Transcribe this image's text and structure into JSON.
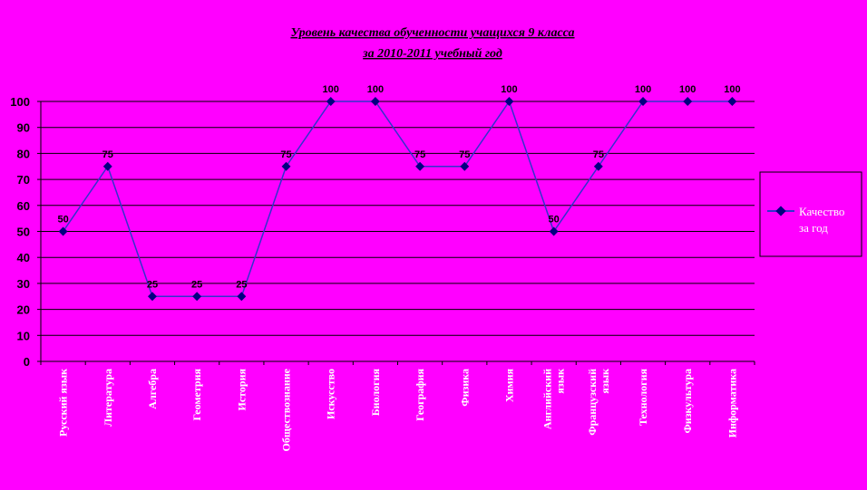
{
  "chart_data": {
    "type": "line",
    "title": "Уровень качества обученности учащихся 9 класса",
    "subtitle": "за 2010-2011 учебный год",
    "categories": [
      "Русский язык",
      "Литература",
      "Алгебра",
      "Геометрия",
      "История",
      "Обществознание",
      "Искусство",
      "Биология",
      "География",
      "Физика",
      "Химия",
      "Английский язык",
      "Французский язык",
      "Технология",
      "Физкультура",
      "Информатика"
    ],
    "series": [
      {
        "name": "Качество за год",
        "values": [
          50,
          75,
          25,
          25,
          25,
          75,
          100,
          100,
          75,
          75,
          100,
          50,
          75,
          100,
          100,
          100
        ]
      }
    ],
    "ylim": [
      0,
      100
    ],
    "yticks": [
      0,
      10,
      20,
      30,
      40,
      50,
      60,
      70,
      80,
      90,
      100
    ],
    "grid": true,
    "legend": "right",
    "colors": {
      "background": "#ff00ff",
      "plot_background": "#ff00ff",
      "line": "#3333cc",
      "marker": "#000080",
      "gridline": "#000000",
      "x_tick_text": "#ffffff",
      "title_text": "#000000"
    }
  }
}
